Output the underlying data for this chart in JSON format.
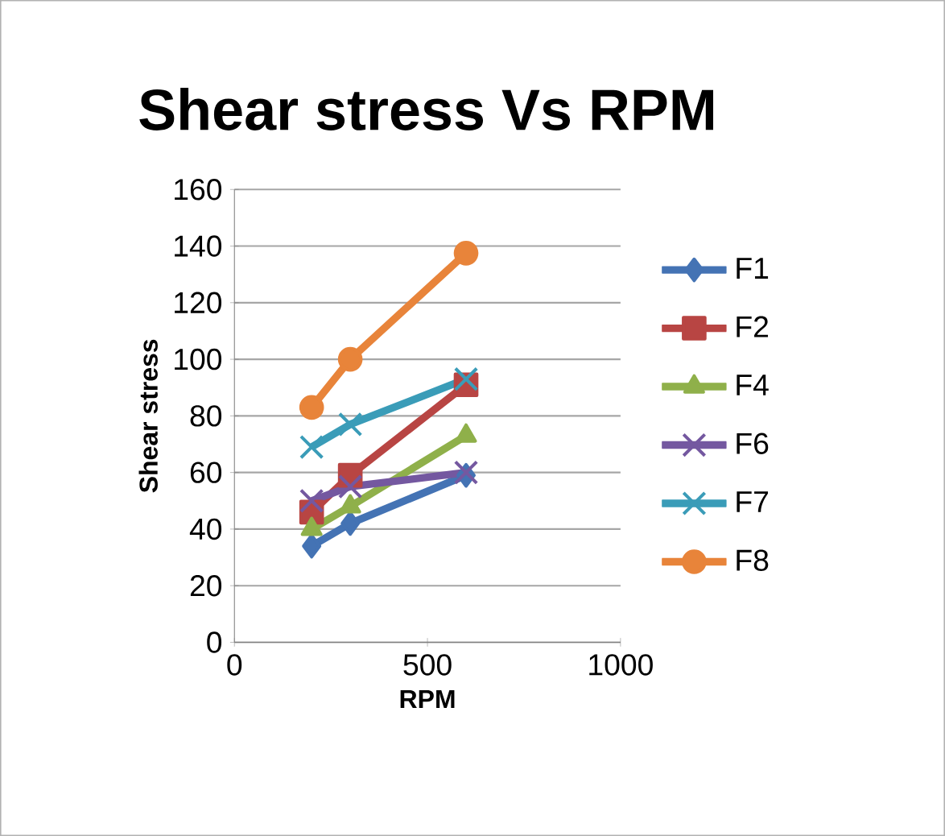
{
  "chart_data": {
    "type": "line",
    "title": "Shear stress Vs RPM",
    "xlabel": "RPM",
    "ylabel": "Shear stress",
    "x": [
      200,
      300,
      600
    ],
    "series": [
      {
        "name": "F1",
        "color": "#4473b4",
        "marker": "diamond",
        "values": [
          34,
          42,
          59
        ]
      },
      {
        "name": "F2",
        "color": "#b84543",
        "marker": "square",
        "values": [
          46,
          59,
          91
        ]
      },
      {
        "name": "F4",
        "color": "#8fb04a",
        "marker": "triangle",
        "values": [
          40,
          48,
          73
        ]
      },
      {
        "name": "F6",
        "color": "#7458a0",
        "marker": "cross",
        "values": [
          50,
          55,
          60
        ]
      },
      {
        "name": "F7",
        "color": "#3a9cb8",
        "marker": "cross",
        "values": [
          69,
          77,
          93
        ]
      },
      {
        "name": "F8",
        "color": "#e8843a",
        "marker": "circle",
        "values": [
          83,
          100,
          137.5
        ]
      }
    ],
    "xlim": [
      0,
      1000
    ],
    "xticks": [
      0,
      500,
      1000
    ],
    "ylim": [
      0,
      160
    ],
    "yticks": [
      0,
      20,
      40,
      60,
      80,
      100,
      120,
      140,
      160
    ],
    "grid": "y",
    "legend": "right",
    "line_style": "solid"
  }
}
